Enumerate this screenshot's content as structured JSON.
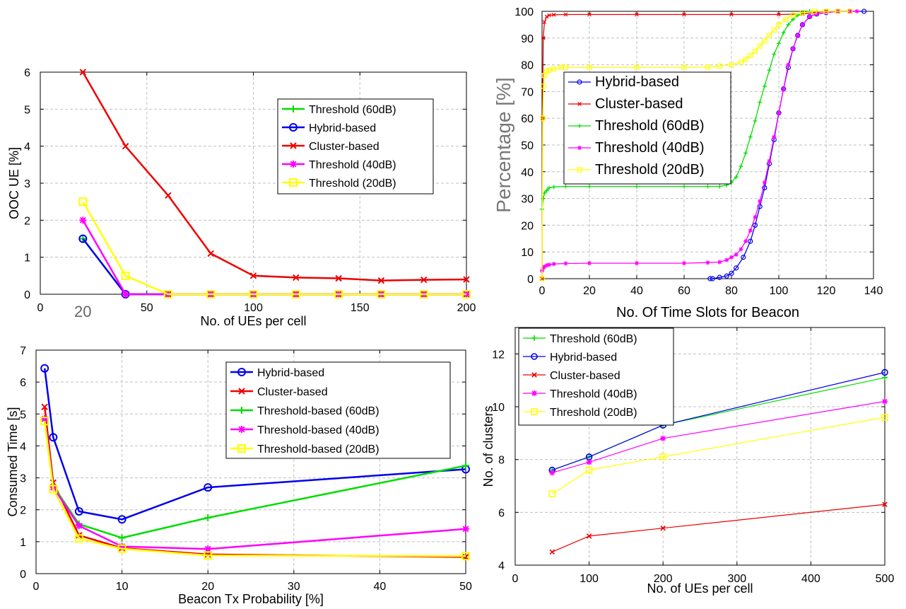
{
  "chart_data": [
    {
      "type": "line",
      "xlabel": "No. of UEs per cell",
      "ylabel": "OOC UE [%]",
      "xlim": [
        0,
        200
      ],
      "ylim": [
        0,
        6
      ],
      "xticks": [
        "0",
        "50",
        "100",
        "150",
        "200"
      ],
      "xtick_values": [
        0,
        50,
        100,
        150,
        200
      ],
      "extra_xtick_label": "20",
      "extra_xtick_value": 20,
      "yticks": [
        "0",
        "1",
        "2",
        "3",
        "4",
        "5",
        "6"
      ],
      "ytick_values": [
        0,
        1,
        2,
        3,
        4,
        5,
        6
      ],
      "grid": true,
      "legend_position": "top-right",
      "series": [
        {
          "name": "Threshold (60dB)",
          "color": "#00dd00",
          "marker": "plus",
          "x": [
            20,
            40,
            60,
            80,
            100,
            120,
            140,
            160,
            180,
            200
          ],
          "y": [
            1.5,
            0,
            0,
            0,
            0,
            0,
            0,
            0,
            0,
            0
          ]
        },
        {
          "name": "Hybrid-based",
          "color": "#0000ee",
          "marker": "circle",
          "x": [
            20,
            40,
            60,
            80,
            100,
            120,
            140,
            160,
            180,
            200
          ],
          "y": [
            1.5,
            0,
            0,
            0,
            0,
            0,
            0,
            0,
            0,
            0
          ]
        },
        {
          "name": "Cluster-based",
          "color": "#ee0000",
          "marker": "x",
          "x": [
            20,
            40,
            60,
            80,
            100,
            120,
            140,
            160,
            180,
            200
          ],
          "y": [
            6,
            4,
            2.67,
            1.1,
            0.5,
            0.45,
            0.43,
            0.37,
            0.39,
            0.4
          ]
        },
        {
          "name": "Threshold (40dB)",
          "color": "#ff00ff",
          "marker": "star",
          "x": [
            20,
            40,
            60,
            80,
            100,
            120,
            140,
            160,
            180,
            200
          ],
          "y": [
            2,
            0,
            0,
            0,
            0,
            0,
            0,
            0,
            0,
            0
          ]
        },
        {
          "name": "Threshold (20dB)",
          "color": "#ffff00",
          "marker": "square",
          "x": [
            20,
            40,
            60,
            80,
            100,
            120,
            140,
            160,
            180,
            200
          ],
          "y": [
            2.5,
            0.5,
            0,
            0,
            0,
            0,
            0,
            0,
            0,
            0
          ]
        }
      ]
    },
    {
      "type": "line",
      "xlabel": "No. Of Time Slots for Beacon",
      "ylabel": "Percentage [%]",
      "xlim": [
        0,
        140
      ],
      "ylim": [
        0,
        100
      ],
      "xticks": [
        "0",
        "20",
        "40",
        "60",
        "80",
        "100",
        "120",
        "140"
      ],
      "xtick_values": [
        0,
        20,
        40,
        60,
        80,
        100,
        120,
        140
      ],
      "yticks": [
        "0",
        "10",
        "20",
        "30",
        "40",
        "50",
        "60",
        "70",
        "80",
        "90",
        "100"
      ],
      "ytick_values": [
        0,
        10,
        20,
        30,
        40,
        50,
        60,
        70,
        80,
        90,
        100
      ],
      "grid": true,
      "legend_position": "middle-left",
      "series": [
        {
          "name": "Hybrid-based",
          "color": "#0000ee",
          "marker": "circle",
          "x": [
            71,
            72,
            75,
            78,
            80,
            82,
            85,
            88,
            90,
            92,
            94,
            96,
            98,
            100,
            102,
            104,
            106,
            108,
            110,
            113,
            116,
            120,
            125,
            130,
            136
          ],
          "y": [
            0,
            0,
            0.5,
            1,
            2,
            4,
            8,
            14,
            20,
            27,
            34,
            43,
            52,
            62,
            71,
            79,
            86,
            91,
            95,
            98,
            99,
            99.5,
            100,
            100,
            100
          ]
        },
        {
          "name": "Cluster-based",
          "color": "#ee0000",
          "marker": "x",
          "x": [
            0,
            0.2,
            0.5,
            1,
            2,
            3,
            5,
            10,
            20,
            40,
            60,
            80,
            100,
            110,
            115,
            120,
            125,
            130
          ],
          "y": [
            0,
            60,
            90,
            96,
            98,
            98.5,
            98.7,
            98.8,
            98.8,
            98.8,
            98.8,
            98.8,
            98.8,
            99,
            99.5,
            100,
            100,
            100
          ]
        },
        {
          "name": "Threshold (60dB)",
          "color": "#00dd00",
          "marker": "plus",
          "x": [
            0,
            0.5,
            1,
            2,
            3,
            5,
            10,
            20,
            40,
            60,
            70,
            75,
            78,
            80,
            82,
            84,
            86,
            88,
            90,
            92,
            94,
            96,
            98,
            100,
            102,
            104,
            106,
            108,
            110,
            113,
            116,
            120,
            125
          ],
          "y": [
            26,
            30,
            32,
            33,
            34,
            34.3,
            34.5,
            34.5,
            34.5,
            34.5,
            34.5,
            34.5,
            35,
            36,
            38,
            42,
            47,
            53,
            59,
            66,
            72,
            78,
            84,
            88,
            92,
            95,
            97,
            98.5,
            99.5,
            100,
            100,
            100,
            100
          ]
        },
        {
          "name": "Threshold (40dB)",
          "color": "#ff00ff",
          "marker": "star",
          "x": [
            0,
            0.5,
            1,
            2,
            3,
            5,
            10,
            20,
            40,
            60,
            70,
            75,
            78,
            80,
            82,
            84,
            86,
            88,
            90,
            92,
            94,
            96,
            98,
            100,
            102,
            104,
            106,
            108,
            110,
            113,
            116,
            120,
            125,
            130,
            133
          ],
          "y": [
            3,
            4,
            4.5,
            5,
            5.2,
            5.5,
            5.7,
            5.8,
            5.8,
            5.8,
            6,
            6.2,
            7,
            8,
            9,
            11,
            14,
            18,
            23,
            29,
            36,
            44,
            53,
            62,
            71,
            80,
            86,
            91,
            95,
            98,
            99,
            99.5,
            100,
            100,
            100
          ]
        },
        {
          "name": "Threshold (20dB)",
          "color": "#ffff00",
          "marker": "square",
          "x": [
            0,
            0.3,
            0.6,
            1,
            2,
            3,
            5,
            8,
            10,
            20,
            40,
            60,
            70,
            75,
            80,
            84,
            86,
            88,
            90,
            92,
            94,
            96,
            98,
            100,
            103,
            106,
            110,
            115,
            120,
            125,
            130
          ],
          "y": [
            0,
            60,
            72,
            76,
            77.5,
            78,
            78.5,
            79,
            79,
            79,
            79,
            79,
            79.2,
            79.5,
            80,
            81,
            82,
            83.5,
            85,
            87,
            89,
            91,
            93,
            95,
            97,
            98.5,
            99.5,
            100,
            100,
            100,
            100
          ]
        }
      ]
    },
    {
      "type": "line",
      "xlabel": "Beacon Tx Probability [%]",
      "ylabel": "Consumed Time [s]",
      "xlim": [
        0,
        50
      ],
      "ylim": [
        0,
        7
      ],
      "xticks": [
        "0",
        "10",
        "20",
        "30",
        "40",
        "50"
      ],
      "xtick_values": [
        0,
        10,
        20,
        30,
        40,
        50
      ],
      "yticks": [
        "0",
        "1",
        "2",
        "3",
        "4",
        "5",
        "6",
        "7"
      ],
      "ytick_values": [
        0,
        1,
        2,
        3,
        4,
        5,
        6,
        7
      ],
      "grid": true,
      "legend_position": "top-right",
      "series": [
        {
          "name": "Hybrid-based",
          "color": "#0000ee",
          "marker": "circle",
          "x": [
            1,
            2,
            5,
            10,
            20,
            50
          ],
          "y": [
            6.43,
            4.27,
            1.95,
            1.7,
            2.7,
            3.27
          ]
        },
        {
          "name": "Cluster-based",
          "color": "#ee0000",
          "marker": "x",
          "x": [
            1,
            2,
            5,
            10,
            20,
            50
          ],
          "y": [
            5.22,
            2.85,
            1.2,
            0.8,
            0.6,
            0.52
          ]
        },
        {
          "name": "Threshold-based (60dB)",
          "color": "#00dd00",
          "marker": "plus",
          "x": [
            1,
            2,
            5,
            10,
            20,
            50
          ],
          "y": [
            4.8,
            2.75,
            1.55,
            1.12,
            1.75,
            3.38
          ]
        },
        {
          "name": "Threshold-based (40dB)",
          "color": "#ff00ff",
          "marker": "star",
          "x": [
            1,
            2,
            5,
            10,
            20,
            50
          ],
          "y": [
            4.85,
            2.7,
            1.5,
            0.85,
            0.77,
            1.4
          ]
        },
        {
          "name": "Threshold-based (20dB)",
          "color": "#ffff00",
          "marker": "square",
          "x": [
            1,
            2,
            5,
            10,
            20,
            50
          ],
          "y": [
            4.78,
            2.65,
            1.1,
            0.78,
            0.57,
            0.55
          ]
        }
      ]
    },
    {
      "type": "line",
      "xlabel": "No. of UEs per cell",
      "ylabel": "No. of clusters",
      "xlim": [
        0,
        500
      ],
      "ylim": [
        4,
        13
      ],
      "xticks": [
        "0",
        "100",
        "200",
        "300",
        "400",
        "500"
      ],
      "xtick_values": [
        0,
        100,
        200,
        300,
        400,
        500
      ],
      "yticks": [
        "4",
        "6",
        "8",
        "10",
        "12"
      ],
      "ytick_values": [
        4,
        6,
        8,
        10,
        12
      ],
      "grid": true,
      "legend_position": "top-left",
      "series": [
        {
          "name": "Threshold (60dB)",
          "color": "#00dd00",
          "marker": "plus",
          "x": [
            50,
            100,
            200,
            500
          ],
          "y": [
            7.6,
            8.1,
            9.3,
            11.1
          ]
        },
        {
          "name": "Hybrid-based",
          "color": "#0000ee",
          "marker": "circle",
          "x": [
            50,
            100,
            200,
            500
          ],
          "y": [
            7.6,
            8.1,
            9.3,
            11.3
          ]
        },
        {
          "name": "Cluster-based",
          "color": "#ee0000",
          "marker": "x",
          "x": [
            50,
            100,
            200,
            500
          ],
          "y": [
            4.5,
            5.1,
            5.4,
            6.3
          ]
        },
        {
          "name": "Threshold (40dB)",
          "color": "#ff00ff",
          "marker": "star",
          "x": [
            50,
            100,
            200,
            500
          ],
          "y": [
            7.5,
            7.9,
            8.8,
            10.2
          ]
        },
        {
          "name": "Threshold (20dB)",
          "color": "#ffff00",
          "marker": "square",
          "x": [
            50,
            100,
            200,
            500
          ],
          "y": [
            6.7,
            7.6,
            8.1,
            9.6
          ]
        }
      ]
    }
  ]
}
